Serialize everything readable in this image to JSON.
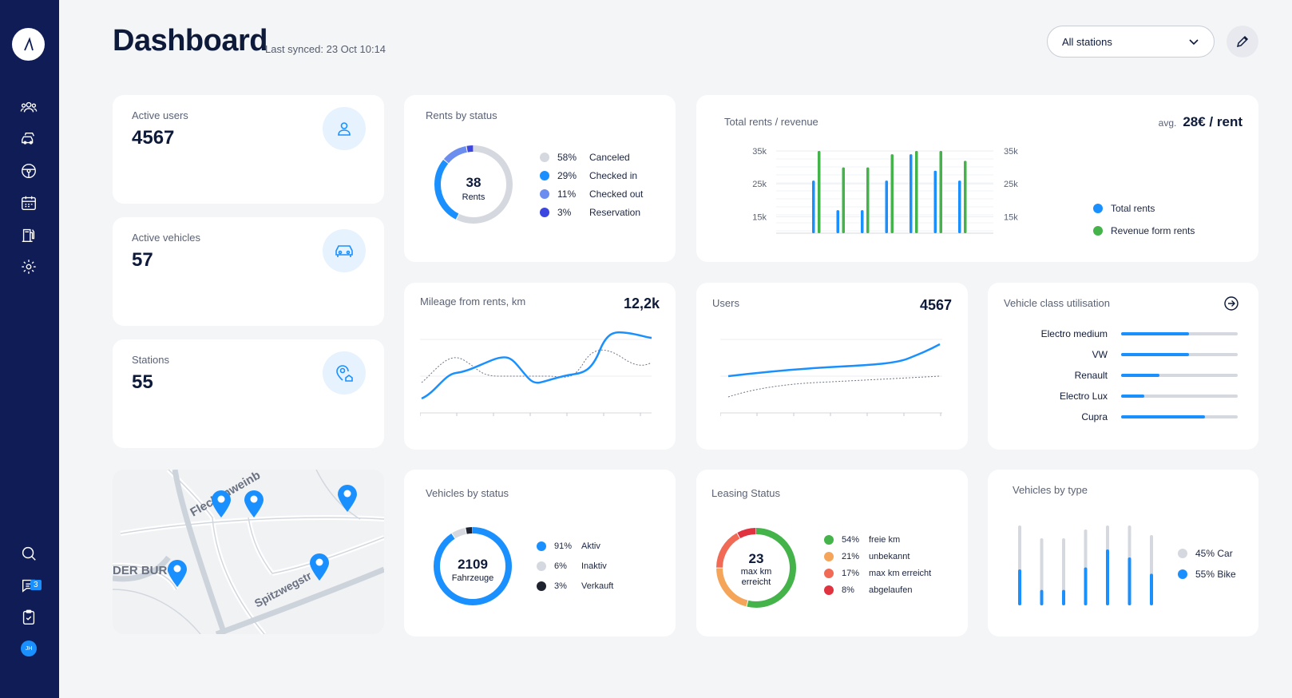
{
  "header": {
    "title": "Dashboard",
    "synced": "Last synced: 23 Oct 10:14",
    "station_select": "All stations"
  },
  "sidebar": {
    "chat_badge": "3",
    "avatar_initials": "JH"
  },
  "kpis": [
    {
      "label": "Active users",
      "value": "4567"
    },
    {
      "label": "Active vehicles",
      "value": "57"
    },
    {
      "label": "Stations",
      "value": "55"
    }
  ],
  "rents_by_status": {
    "title": "Rents by status",
    "center_value": "38",
    "center_label": "Rents",
    "items": [
      {
        "pct": "58%",
        "label": "Canceled",
        "color": "#d5d9df",
        "value": 58
      },
      {
        "pct": "29%",
        "label": "Checked in",
        "color": "#1a90ff",
        "value": 29
      },
      {
        "pct": "11%",
        "label": "Checked out",
        "color": "#6b8df0",
        "value": 11
      },
      {
        "pct": "3%",
        "label": "Reservation",
        "color": "#3b45e0",
        "value": 3
      }
    ]
  },
  "total_rents": {
    "title": "Total rents / revenue",
    "avg_label": "avg.",
    "avg_value": "28€ / rent",
    "legend": [
      {
        "label": "Total rents",
        "color": "#1a90ff"
      },
      {
        "label": "Revenue form rents",
        "color": "#43b34a"
      }
    ]
  },
  "mileage": {
    "title": "Mileage from rents, km",
    "value": "12,2k"
  },
  "users": {
    "title": "Users",
    "value": "4567"
  },
  "vehicle_class": {
    "title": "Vehicle class utilisation",
    "items": [
      {
        "label": "Electro medium",
        "value": 0.58
      },
      {
        "label": "VW",
        "value": 0.58
      },
      {
        "label": "Renault",
        "value": 0.33
      },
      {
        "label": "Electro Lux",
        "value": 0.2
      },
      {
        "label": "Cupra",
        "value": 0.72
      }
    ]
  },
  "map": {
    "street1": "Fleckenweinb",
    "street2": "Spitzwegstr",
    "area": "DER BURG"
  },
  "vehicles_by_status": {
    "title": "Vehicles by status",
    "center_value": "2109",
    "center_label": "Fahrzeuge",
    "items": [
      {
        "pct": "91%",
        "label": "Aktiv",
        "color": "#1a90ff",
        "value": 91
      },
      {
        "pct": "6%",
        "label": "Inaktiv",
        "color": "#d5d9df",
        "value": 6
      },
      {
        "pct": "3%",
        "label": "Verkauft",
        "color": "#1f2330",
        "value": 3
      }
    ]
  },
  "leasing": {
    "title": "Leasing Status",
    "center_value": "23",
    "center_line1": "max km",
    "center_line2": "erreicht",
    "items": [
      {
        "pct": "54%",
        "label": "freie km",
        "color": "#43b34a",
        "value": 54
      },
      {
        "pct": "21%",
        "label": "unbekannt",
        "color": "#f5a55a",
        "value": 21
      },
      {
        "pct": "17%",
        "label": "max km erreicht",
        "color": "#f06a55",
        "value": 17
      },
      {
        "pct": "8%",
        "label": "abgelaufen",
        "color": "#e0323f",
        "value": 8
      }
    ]
  },
  "vehicles_by_type": {
    "title": "Vehicles by type",
    "legend": [
      {
        "label": "45% Car",
        "color": "#d5d9df"
      },
      {
        "label": "55% Bike",
        "color": "#1a90ff"
      }
    ],
    "bars": [
      0.45,
      0.23,
      0.23,
      0.5,
      0.7,
      0.6,
      0.45
    ]
  },
  "chart_data": [
    {
      "type": "bar",
      "title": "Total rents / revenue",
      "ylim": [
        10000,
        35000
      ],
      "ticks": [
        "35k",
        "25k",
        "15k"
      ],
      "series": [
        {
          "name": "Total rents",
          "values": [
            26000,
            17000,
            17000,
            26000,
            34000,
            29000,
            26000
          ]
        },
        {
          "name": "Revenue form rents",
          "values": [
            35000,
            30000,
            30000,
            34000,
            35000,
            35000,
            32000
          ]
        }
      ]
    },
    {
      "type": "line",
      "title": "Mileage from rents, km"
    },
    {
      "type": "line",
      "title": "Users"
    }
  ]
}
